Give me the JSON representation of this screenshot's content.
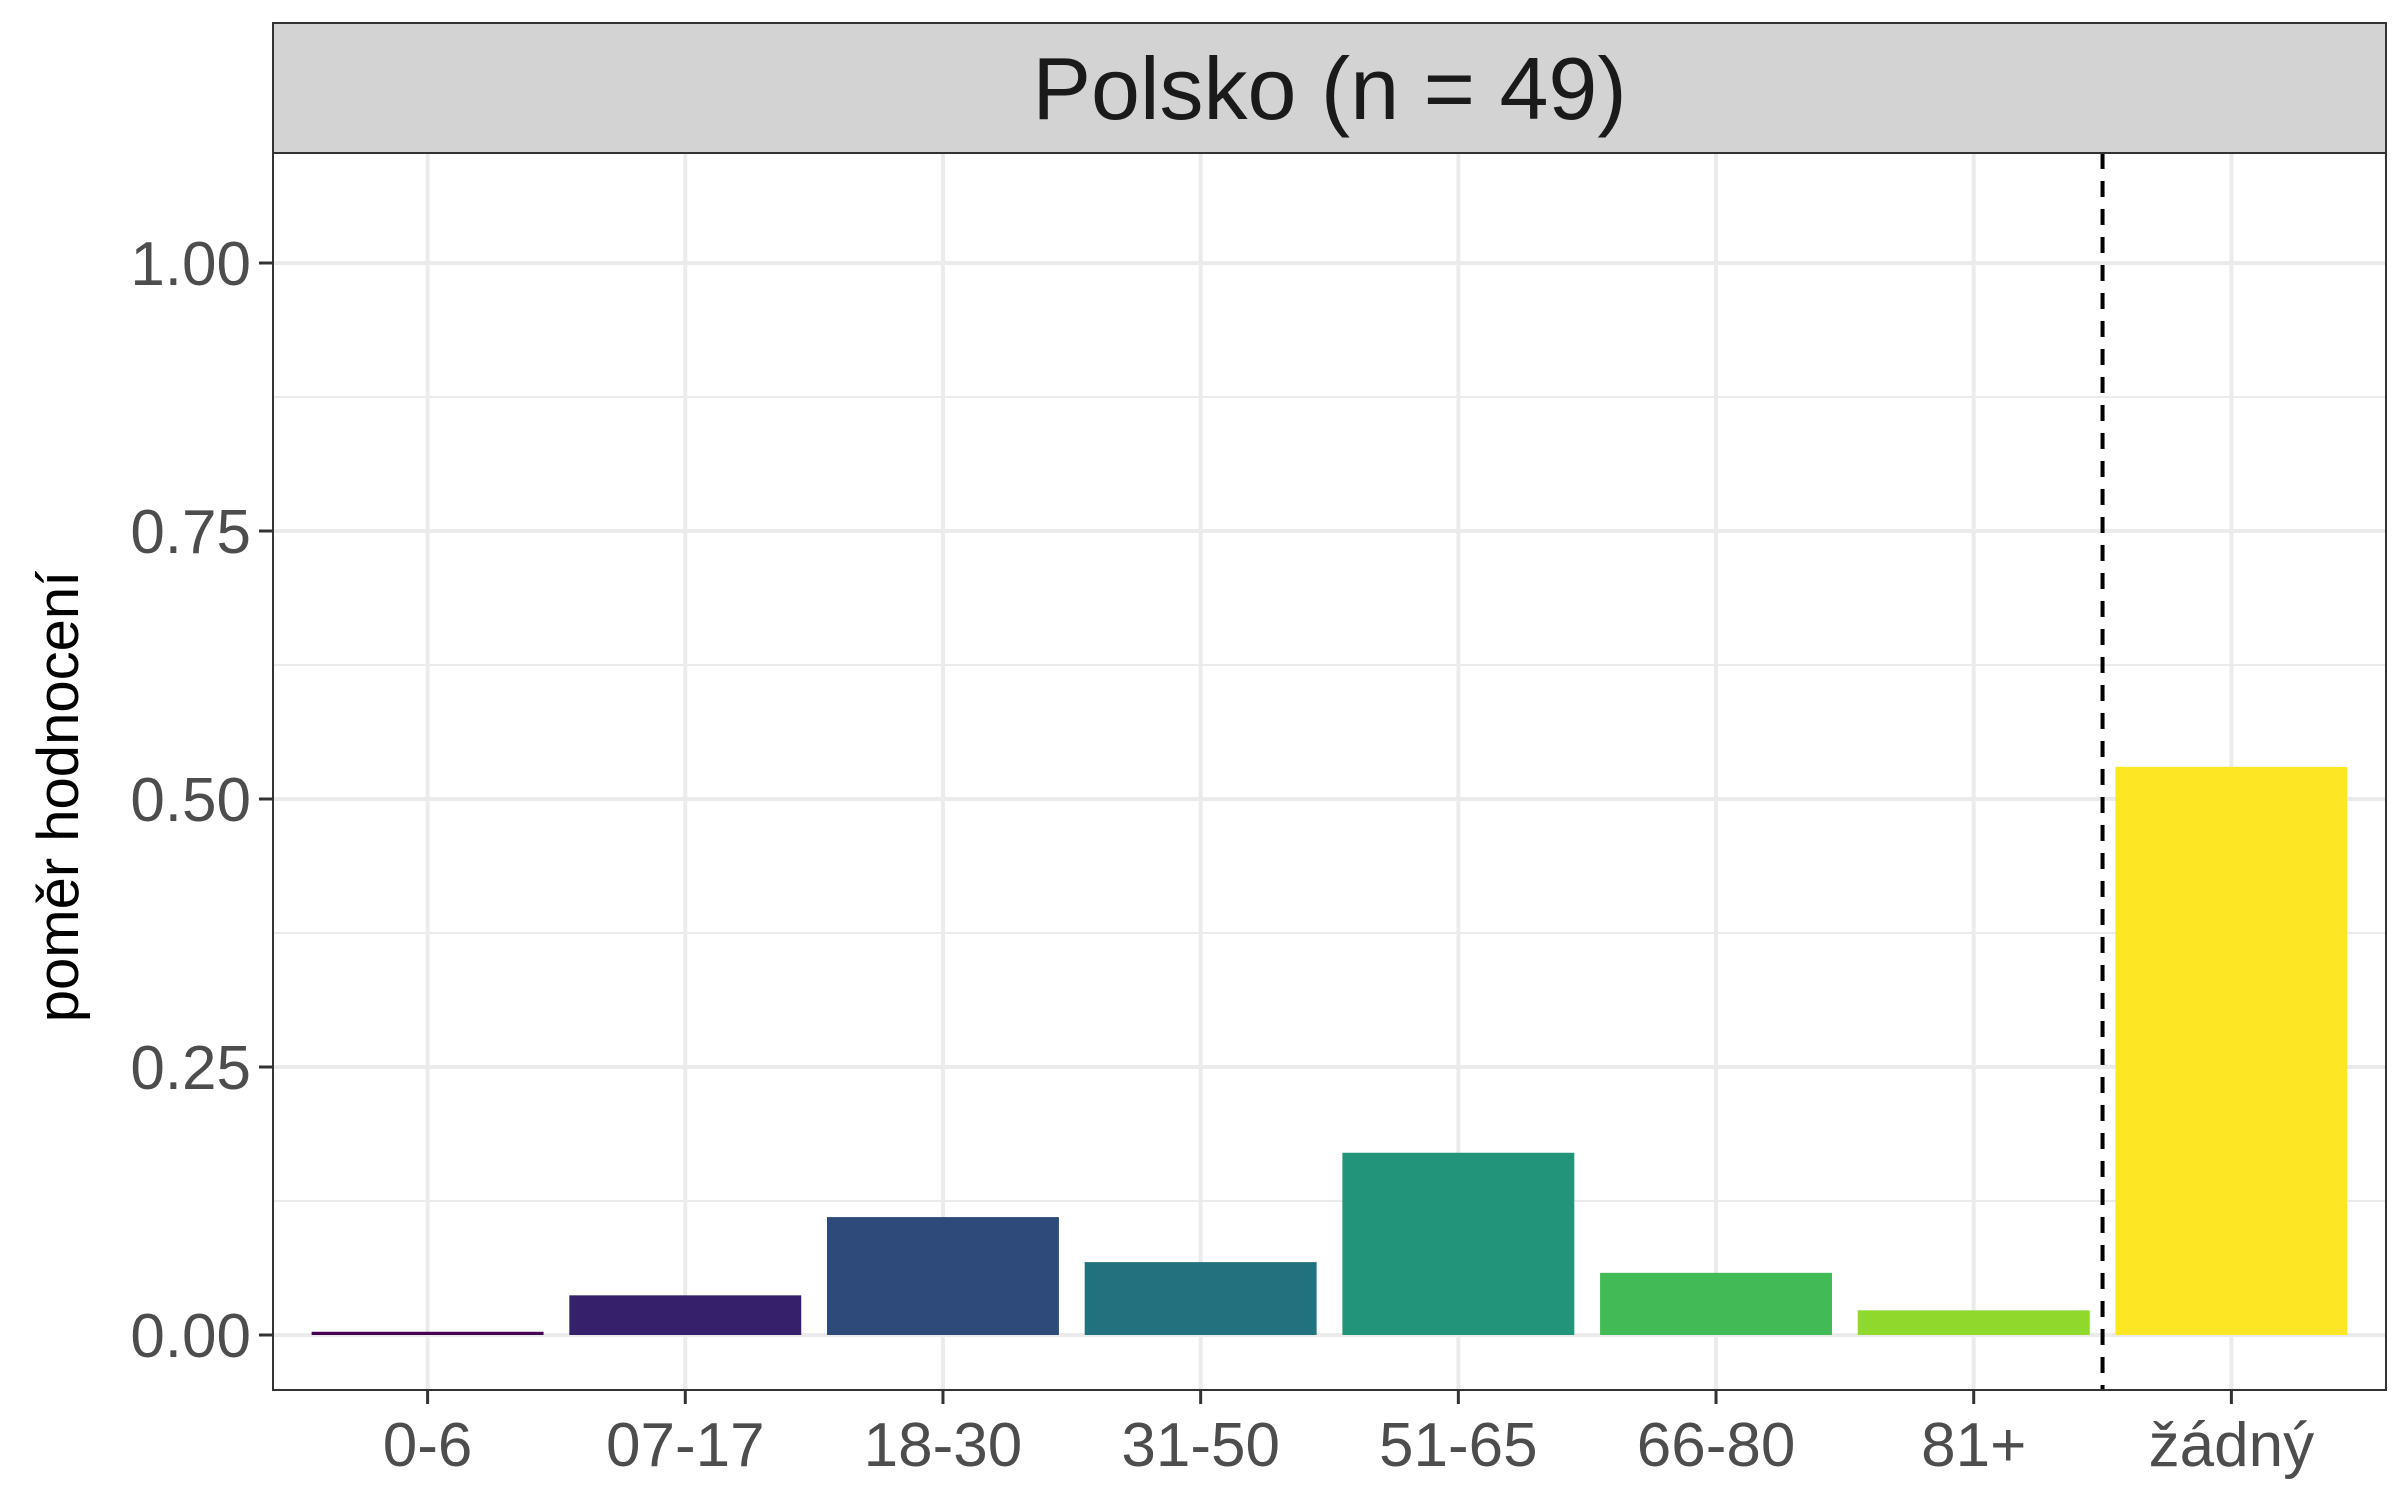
{
  "chart_data": {
    "type": "bar",
    "facet_title": "Polsko (n = 49)",
    "title": "",
    "xlabel": "",
    "ylabel": "poměr hodnocení",
    "categories": [
      "0-6",
      "07-17",
      "18-30",
      "31-50",
      "51-65",
      "66-80",
      "81+",
      "žádný"
    ],
    "values": [
      0.003,
      0.037,
      0.11,
      0.068,
      0.17,
      0.058,
      0.023,
      0.53
    ],
    "colors": [
      "#440154",
      "#35206B",
      "#2D4A7A",
      "#21717F",
      "#21947A",
      "#42BA55",
      "#8FD82C",
      "#FDE725"
    ],
    "ylim": [
      -0.05,
      1.1
    ],
    "yticks": [
      0,
      0.25,
      0.5,
      0.75,
      1
    ],
    "ytick_labels": [
      "0.00",
      "0.25",
      "0.50",
      "0.75",
      "1.00"
    ],
    "reference_line": {
      "between": [
        "81+",
        "žádný"
      ],
      "style": "dashed"
    },
    "grid": true,
    "legend": "none"
  },
  "style": {
    "strip_fill": "#D3D3D3",
    "grid_color": "#EBEBEB",
    "axis_text_color": "#4D4D4D",
    "text_color": "#1A1A1A"
  }
}
